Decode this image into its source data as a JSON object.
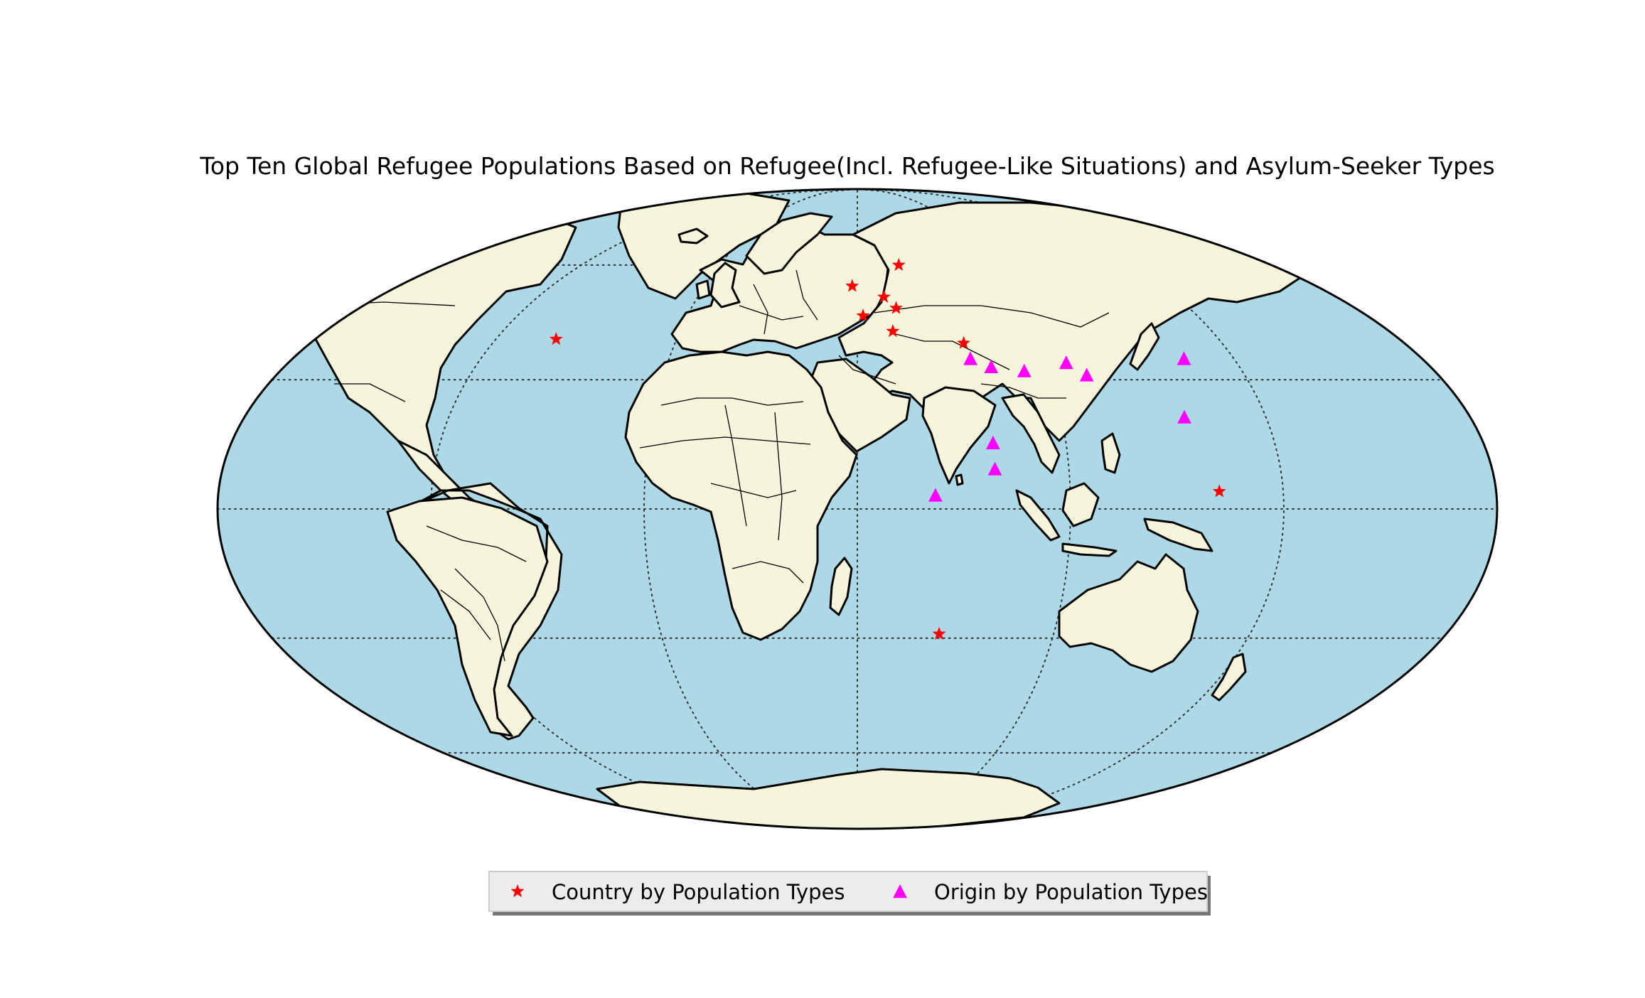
{
  "title": "Top Ten Global Refugee Populations Based on Refugee(Incl. Refugee-Like Situations) and Asylum-Seeker Types",
  "colors": {
    "ocean": "#add8e6",
    "land": "#f5f5dc",
    "country_marker": "#ff0000",
    "origin_marker": "#ff00ff"
  },
  "legend": {
    "country_label": "Country by Population Types",
    "origin_label": "Origin by Population Types",
    "placement": "bottom-center"
  },
  "chart_data": {
    "type": "scatter",
    "projection": "mollweide",
    "series": [
      {
        "name": "Country by Population Types",
        "marker": "star",
        "points": [
          {
            "lon": -100,
            "lat": 40
          },
          {
            "lon": 10,
            "lat": 51
          },
          {
            "lon": 2,
            "lat": 46
          },
          {
            "lon": 12,
            "lat": 42
          },
          {
            "lon": 35,
            "lat": 39
          },
          {
            "lon": -2,
            "lat": 54
          },
          {
            "lon": 18,
            "lat": 60
          },
          {
            "lon": 14,
            "lat": 48
          },
          {
            "lon": 102,
            "lat": 4
          },
          {
            "lon": 25,
            "lat": -29
          }
        ]
      },
      {
        "name": "Origin by Population Types",
        "marker": "triangle",
        "points": [
          {
            "lon": 36,
            "lat": 35
          },
          {
            "lon": 42,
            "lat": 33
          },
          {
            "lon": 52,
            "lat": 32
          },
          {
            "lon": 66,
            "lat": 34
          },
          {
            "lon": 71,
            "lat": 31
          },
          {
            "lon": 104,
            "lat": 35
          },
          {
            "lon": 96,
            "lat": 21
          },
          {
            "lon": 39,
            "lat": 15
          },
          {
            "lon": 39,
            "lat": 9
          },
          {
            "lon": 22,
            "lat": 3
          }
        ]
      }
    ]
  }
}
